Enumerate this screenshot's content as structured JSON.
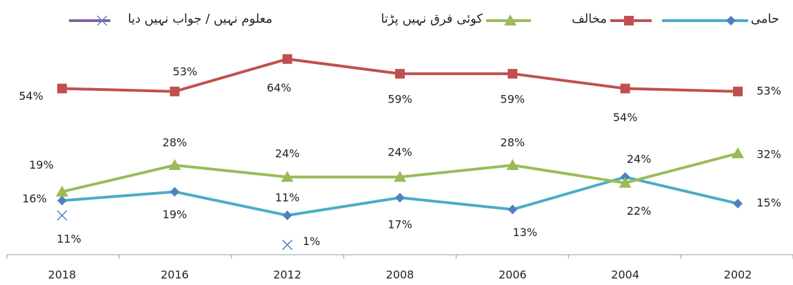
{
  "chart_data": {
    "type": "line",
    "categories": [
      "2018",
      "2016",
      "2012",
      "2008",
      "2006",
      "2004",
      "2002"
    ],
    "ylim": [
      0,
      70
    ],
    "series": [
      {
        "name": "حامی",
        "color": "#4bacc6",
        "marker": "diamond",
        "marker_color": "#4f81bd",
        "values": [
          16,
          19,
          11,
          17,
          13,
          24,
          15
        ],
        "value_labels": [
          "16%",
          "19%",
          "11%",
          "17%",
          "13%",
          "24%",
          "15%"
        ]
      },
      {
        "name": "مخالف",
        "color": "#c0504d",
        "marker": "square",
        "marker_color": "#c0504d",
        "values": [
          54,
          53,
          64,
          59,
          59,
          54,
          53
        ],
        "value_labels": [
          "54%",
          "53%",
          "64%",
          "59%",
          "59%",
          "54%",
          "53%"
        ]
      },
      {
        "name": "کوئی فرق نہیں پڑتا",
        "color": "#9bbb59",
        "marker": "triangle",
        "marker_color": "#9bbb59",
        "values": [
          19,
          28,
          24,
          24,
          28,
          22,
          32
        ],
        "value_labels": [
          "19%",
          "28%",
          "24%",
          "24%",
          "28%",
          "22%",
          "32%"
        ]
      },
      {
        "name": "معلوم نہیں / جواب نہیں دیا",
        "color": "#8064a2",
        "marker": "x",
        "marker_color": "#4f81bd",
        "values": [
          11,
          null,
          1,
          null,
          null,
          null,
          null
        ],
        "value_labels": [
          "11%",
          null,
          "1%",
          null,
          null,
          null,
          null
        ]
      }
    ]
  }
}
